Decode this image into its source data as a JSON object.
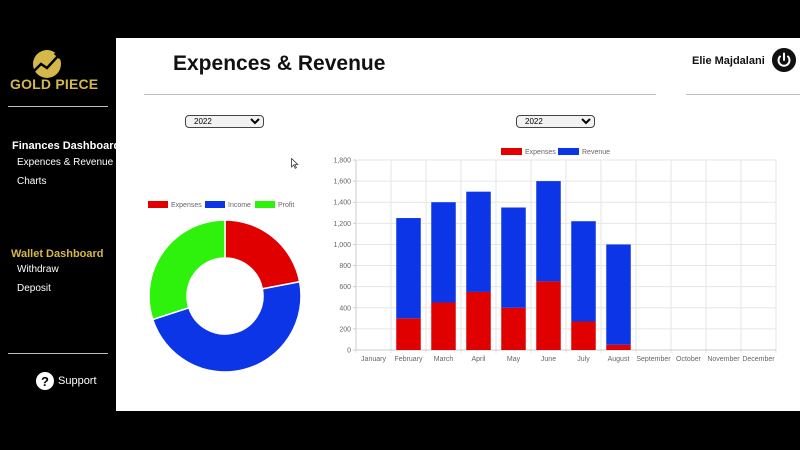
{
  "brand": {
    "name": "GOLD PIECE"
  },
  "sidebar": {
    "finances_heading": "Finances Dashboard",
    "finances_items": [
      "Expences & Revenue",
      "Charts"
    ],
    "wallet_heading": "Wallet Dashboard",
    "wallet_items": [
      "Withdraw",
      "Deposit"
    ],
    "support_label": "Support"
  },
  "header": {
    "title": "Expences & Revenue",
    "user_name": "Elie Majdalani"
  },
  "filters": {
    "donut_year": "2022",
    "bar_year": "2022"
  },
  "colors": {
    "expenses": "#e00000",
    "revenue": "#0b35e6",
    "income": "#0b35e6",
    "profit": "#2ef20c",
    "brand_gold": "#d4b84a"
  },
  "chart_data": [
    {
      "type": "pie",
      "variant": "doughnut",
      "legend_position": "top",
      "labels": [
        "Expenses",
        "Income",
        "Profit"
      ],
      "values": [
        22,
        48,
        30
      ]
    },
    {
      "type": "bar",
      "stacked": true,
      "legend_position": "top",
      "categories": [
        "January",
        "February",
        "March",
        "April",
        "May",
        "June",
        "July",
        "August",
        "September",
        "October",
        "November",
        "December"
      ],
      "series": [
        {
          "name": "Expenses",
          "values": [
            0,
            300,
            450,
            550,
            400,
            650,
            270,
            50,
            0,
            0,
            0,
            0
          ]
        },
        {
          "name": "Revenue",
          "values": [
            0,
            950,
            950,
            950,
            950,
            950,
            950,
            950,
            0,
            0,
            0,
            0
          ]
        }
      ],
      "ylim": [
        0,
        1800
      ],
      "yticks": [
        "0",
        "200",
        "400",
        "600",
        "800",
        "1,000",
        "1,200",
        "1,400",
        "1,600",
        "1,800"
      ],
      "grid": true
    }
  ]
}
